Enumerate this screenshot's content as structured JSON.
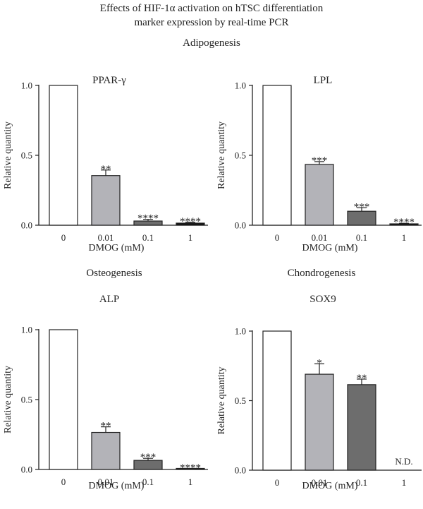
{
  "figure": {
    "title_line1": "Effects of HIF-1α activation on hTSC differentiation",
    "title_line2": "marker expression by real-time PCR",
    "group_adipogenesis": "Adipogenesis",
    "group_osteogenesis": "Osteogenesis",
    "group_chondrogenesis": "Chondrogenesis"
  },
  "colors": {
    "bar_0": "#ffffff",
    "bar_0.01": "#b3b3b8",
    "bar_0.1": "#6d6d6d",
    "bar_1": "#111111",
    "axis": "#222222"
  },
  "chart_data": [
    {
      "type": "bar",
      "title": "PPAR-γ",
      "xlabel": "DMOG (mM)",
      "ylabel": "Relative quantity",
      "categories": [
        "0",
        "0.01",
        "0.1",
        "1"
      ],
      "values": [
        1.0,
        0.355,
        0.03,
        0.015
      ],
      "errors": [
        0,
        0.04,
        0.012,
        0.006
      ],
      "annotations": [
        "",
        "**",
        "****",
        "****"
      ],
      "ylim": [
        0,
        1.0
      ],
      "yticks": [
        "0.0",
        "0.5",
        "1.0"
      ]
    },
    {
      "type": "bar",
      "title": "LPL",
      "xlabel": "DMOG (mM)",
      "ylabel": "Relative quantity",
      "categories": [
        "0",
        "0.01",
        "0.1",
        "1"
      ],
      "values": [
        1.0,
        0.435,
        0.1,
        0.01
      ],
      "errors": [
        0,
        0.02,
        0.025,
        0.004
      ],
      "annotations": [
        "",
        "***",
        "***",
        "****"
      ],
      "ylim": [
        0,
        1.0
      ],
      "yticks": [
        "0.0",
        "0.5",
        "1.0"
      ]
    },
    {
      "type": "bar",
      "title": "ALP",
      "xlabel": "DMOG (mM)",
      "ylabel": "Relative quantity",
      "categories": [
        "0",
        "0.01",
        "0.1",
        "1"
      ],
      "values": [
        1.0,
        0.265,
        0.065,
        0.003
      ],
      "errors": [
        0,
        0.04,
        0.015,
        0.002
      ],
      "annotations": [
        "",
        "**",
        "***",
        "****"
      ],
      "ylim": [
        0,
        1.0
      ],
      "yticks": [
        "0.0",
        "0.5",
        "1.0"
      ]
    },
    {
      "type": "bar",
      "title": "SOX9",
      "xlabel": "DMOG (mM)",
      "ylabel": "Relative quantity",
      "categories": [
        "0",
        "0.01",
        "0.1",
        "1"
      ],
      "values": [
        1.0,
        0.69,
        0.615,
        null
      ],
      "errors": [
        0,
        0.075,
        0.04,
        0
      ],
      "annotations": [
        "",
        "*",
        "**",
        "N.D."
      ],
      "ylim": [
        0,
        1.0
      ],
      "yticks": [
        "0.0",
        "0.5",
        "1.0"
      ]
    }
  ]
}
